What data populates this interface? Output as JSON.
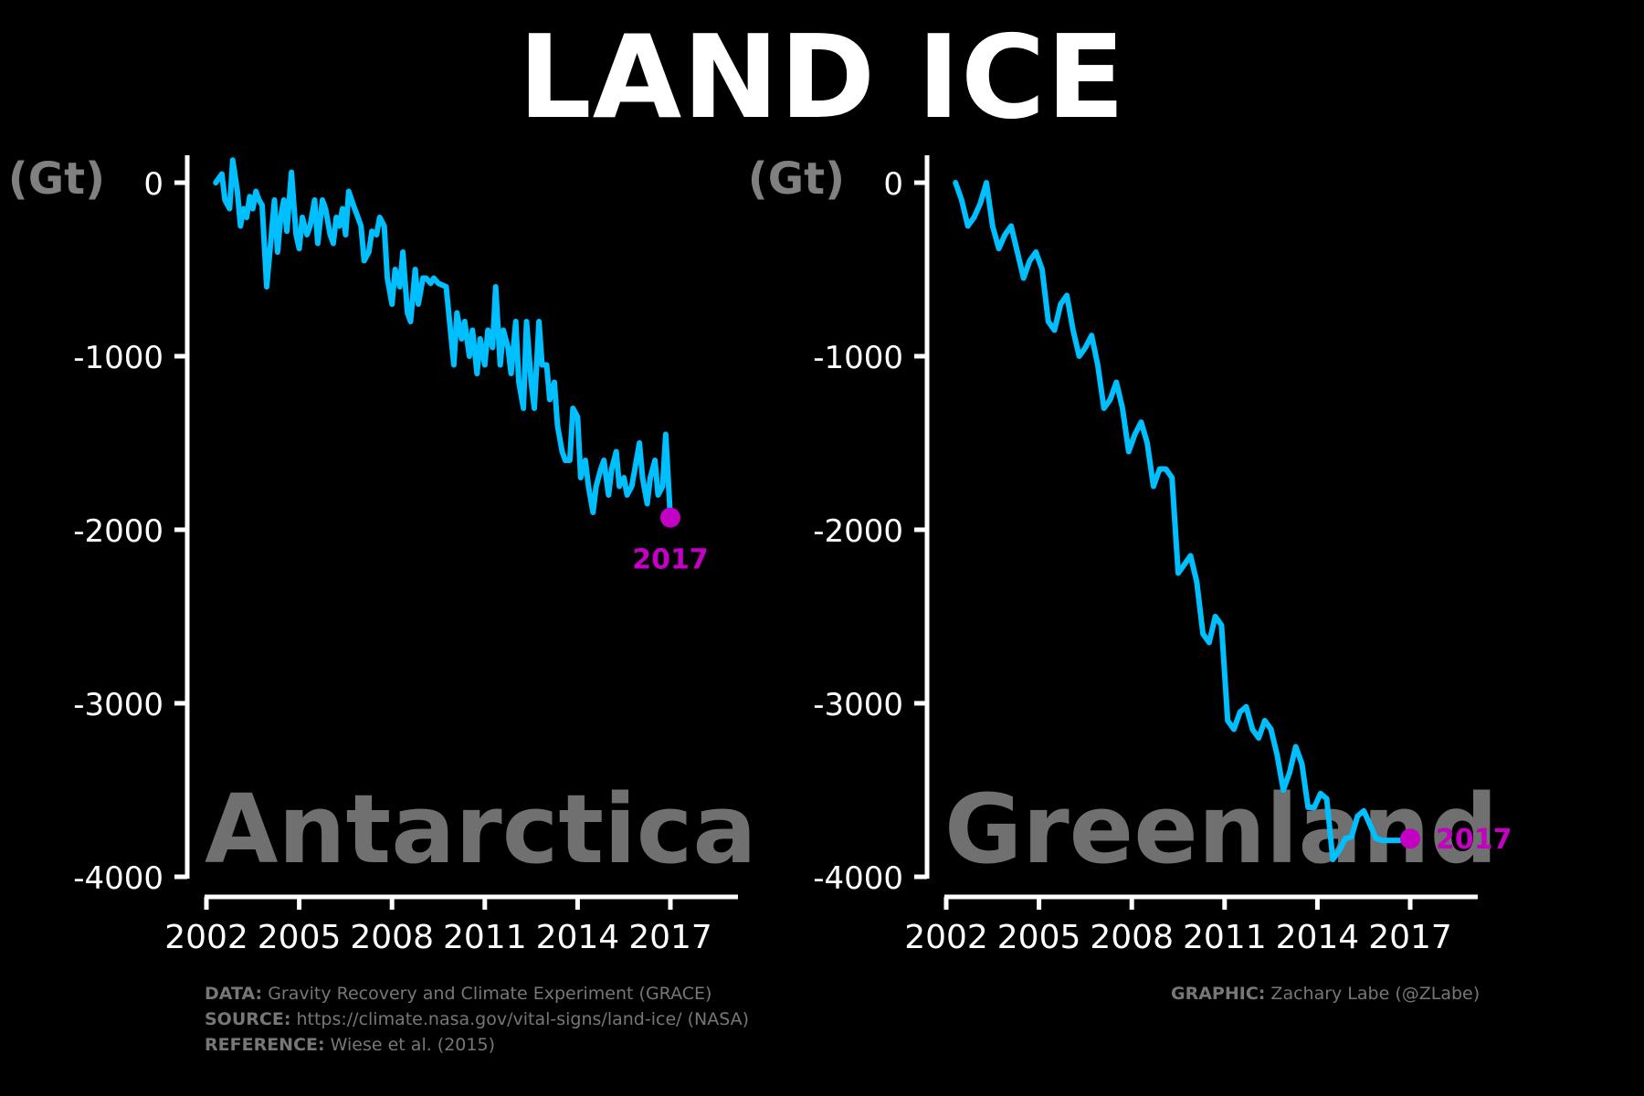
{
  "title": "LAND ICE",
  "colors": {
    "background": "#000000",
    "line": "#00bfff",
    "marker": "#c400c4",
    "axis": "#ffffff",
    "tick_text": "#ffffff",
    "unit_label": "#808080",
    "region_label": "#707070",
    "credits": "#777777"
  },
  "credits": {
    "data_label": "DATA:",
    "data_text": "Gravity Recovery and Climate Experiment (GRACE)",
    "source_label": "SOURCE:",
    "source_text": "https://climate.nasa.gov/vital-signs/land-ice/ (NASA)",
    "reference_label": "REFERENCE:",
    "reference_text": "Wiese et al. (2015)",
    "graphic_label": "GRAPHIC:",
    "graphic_text": "Zachary Labe (@ZLabe)"
  },
  "chart_data": [
    {
      "type": "line",
      "region_label": "Antarctica",
      "ylabel": "(Gt)",
      "ylim": [
        -4000,
        0
      ],
      "yticks": [
        0,
        -1000,
        -2000,
        -3000,
        -4000
      ],
      "xlim": [
        2002,
        2017
      ],
      "xticks": [
        2002,
        2005,
        2008,
        2011,
        2014,
        2017
      ],
      "end_label": "2017",
      "series": [
        {
          "x": [
            2002.3,
            2002.5,
            2002.6,
            2002.75,
            2002.85,
            2003.0,
            2003.1,
            2003.2,
            2003.3,
            2003.4,
            2003.5,
            2003.6,
            2003.7,
            2003.8,
            2003.95,
            2004.1,
            2004.2,
            2004.3,
            2004.4,
            2004.5,
            2004.6,
            2004.75,
            2004.9,
            2005.0,
            2005.1,
            2005.25,
            2005.35,
            2005.5,
            2005.6,
            2005.75,
            2005.85,
            2006.0,
            2006.1,
            2006.2,
            2006.3,
            2006.4,
            2006.5,
            2006.6,
            2006.75,
            2006.9,
            2007.0,
            2007.1,
            2007.25,
            2007.35,
            2007.5,
            2007.6,
            2007.75,
            2007.85,
            2008.0,
            2008.1,
            2008.25,
            2008.35,
            2008.5,
            2008.6,
            2008.75,
            2008.85,
            2009.0,
            2009.1,
            2009.25,
            2009.35,
            2009.5,
            2009.75,
            2010.0,
            2010.1,
            2010.25,
            2010.35,
            2010.5,
            2010.6,
            2010.75,
            2010.85,
            2011.0,
            2011.1,
            2011.25,
            2011.35,
            2011.5,
            2011.6,
            2011.75,
            2011.85,
            2012.0,
            2012.1,
            2012.25,
            2012.35,
            2012.5,
            2012.6,
            2012.75,
            2012.85,
            2013.0,
            2013.1,
            2013.25,
            2013.35,
            2013.5,
            2013.6,
            2013.75,
            2013.85,
            2014.0,
            2014.1,
            2014.25,
            2014.35,
            2014.5,
            2014.6,
            2014.75,
            2014.85,
            2015.0,
            2015.1,
            2015.25,
            2015.35,
            2015.5,
            2015.6,
            2015.75,
            2015.85,
            2016.0,
            2016.1,
            2016.25,
            2016.35,
            2016.5,
            2016.6,
            2016.75,
            2016.85,
            2017.0
          ],
          "y": [
            0,
            50,
            -100,
            -150,
            130,
            -50,
            -250,
            -150,
            -200,
            -80,
            -150,
            -50,
            -100,
            -130,
            -600,
            -300,
            -100,
            -400,
            -200,
            -100,
            -280,
            60,
            -300,
            -380,
            -200,
            -300,
            -250,
            -100,
            -350,
            -100,
            -150,
            -300,
            -350,
            -200,
            -250,
            -150,
            -300,
            -50,
            -130,
            -200,
            -250,
            -450,
            -400,
            -280,
            -300,
            -200,
            -250,
            -550,
            -700,
            -500,
            -600,
            -400,
            -750,
            -800,
            -500,
            -700,
            -550,
            -550,
            -580,
            -550,
            -580,
            -600,
            -1050,
            -750,
            -900,
            -800,
            -1000,
            -850,
            -1100,
            -900,
            -1050,
            -850,
            -950,
            -600,
            -1050,
            -850,
            -950,
            -1100,
            -800,
            -1150,
            -1300,
            -800,
            -1150,
            -1300,
            -800,
            -1050,
            -1050,
            -1250,
            -1150,
            -1400,
            -1550,
            -1600,
            -1600,
            -1300,
            -1350,
            -1700,
            -1600,
            -1750,
            -1900,
            -1750,
            -1650,
            -1600,
            -1800,
            -1650,
            -1550,
            -1750,
            -1700,
            -1800,
            -1750,
            -1650,
            -1500,
            -1700,
            -1850,
            -1700,
            -1600,
            -1800,
            -1750,
            -1450,
            -1930
          ]
        }
      ]
    },
    {
      "type": "line",
      "region_label": "Greenland",
      "ylabel": "(Gt)",
      "ylim": [
        -4000,
        0
      ],
      "yticks": [
        0,
        -1000,
        -2000,
        -3000,
        -4000
      ],
      "xlim": [
        2002,
        2017
      ],
      "xticks": [
        2002,
        2005,
        2008,
        2011,
        2014,
        2017
      ],
      "end_label": "2017",
      "series": [
        {
          "x": [
            2002.3,
            2002.5,
            2002.7,
            2002.9,
            2003.1,
            2003.3,
            2003.5,
            2003.7,
            2003.9,
            2004.1,
            2004.3,
            2004.5,
            2004.7,
            2004.9,
            2005.1,
            2005.3,
            2005.5,
            2005.7,
            2005.9,
            2006.1,
            2006.3,
            2006.5,
            2006.7,
            2006.9,
            2007.1,
            2007.3,
            2007.5,
            2007.7,
            2007.9,
            2008.1,
            2008.3,
            2008.5,
            2008.7,
            2008.9,
            2009.1,
            2009.3,
            2009.5,
            2009.7,
            2009.9,
            2010.1,
            2010.3,
            2010.5,
            2010.7,
            2010.9,
            2011.1,
            2011.3,
            2011.5,
            2011.7,
            2011.9,
            2012.1,
            2012.3,
            2012.5,
            2012.7,
            2012.9,
            2013.1,
            2013.3,
            2013.5,
            2013.7,
            2013.9,
            2014.1,
            2014.3,
            2014.5,
            2014.7,
            2014.9,
            2015.1,
            2015.3,
            2015.5,
            2015.7,
            2015.9,
            2016.1,
            2016.3,
            2016.5,
            2016.7,
            2016.9,
            2017.0
          ],
          "y": [
            0,
            -100,
            -250,
            -200,
            -120,
            0,
            -250,
            -380,
            -300,
            -250,
            -400,
            -550,
            -450,
            -400,
            -500,
            -800,
            -850,
            -700,
            -650,
            -850,
            -1000,
            -950,
            -880,
            -1050,
            -1300,
            -1250,
            -1150,
            -1300,
            -1550,
            -1450,
            -1380,
            -1500,
            -1750,
            -1650,
            -1650,
            -1700,
            -2250,
            -2200,
            -2150,
            -2300,
            -2600,
            -2650,
            -2500,
            -2550,
            -3100,
            -3150,
            -3050,
            -3020,
            -3150,
            -3200,
            -3100,
            -3150,
            -3300,
            -3500,
            -3400,
            -3250,
            -3350,
            -3600,
            -3600,
            -3520,
            -3550,
            -3900,
            -3850,
            -3780,
            -3770,
            -3650,
            -3620,
            -3700,
            -3780,
            -3790,
            -3790,
            -3790,
            -3790,
            -3790,
            -3780
          ]
        }
      ]
    }
  ]
}
